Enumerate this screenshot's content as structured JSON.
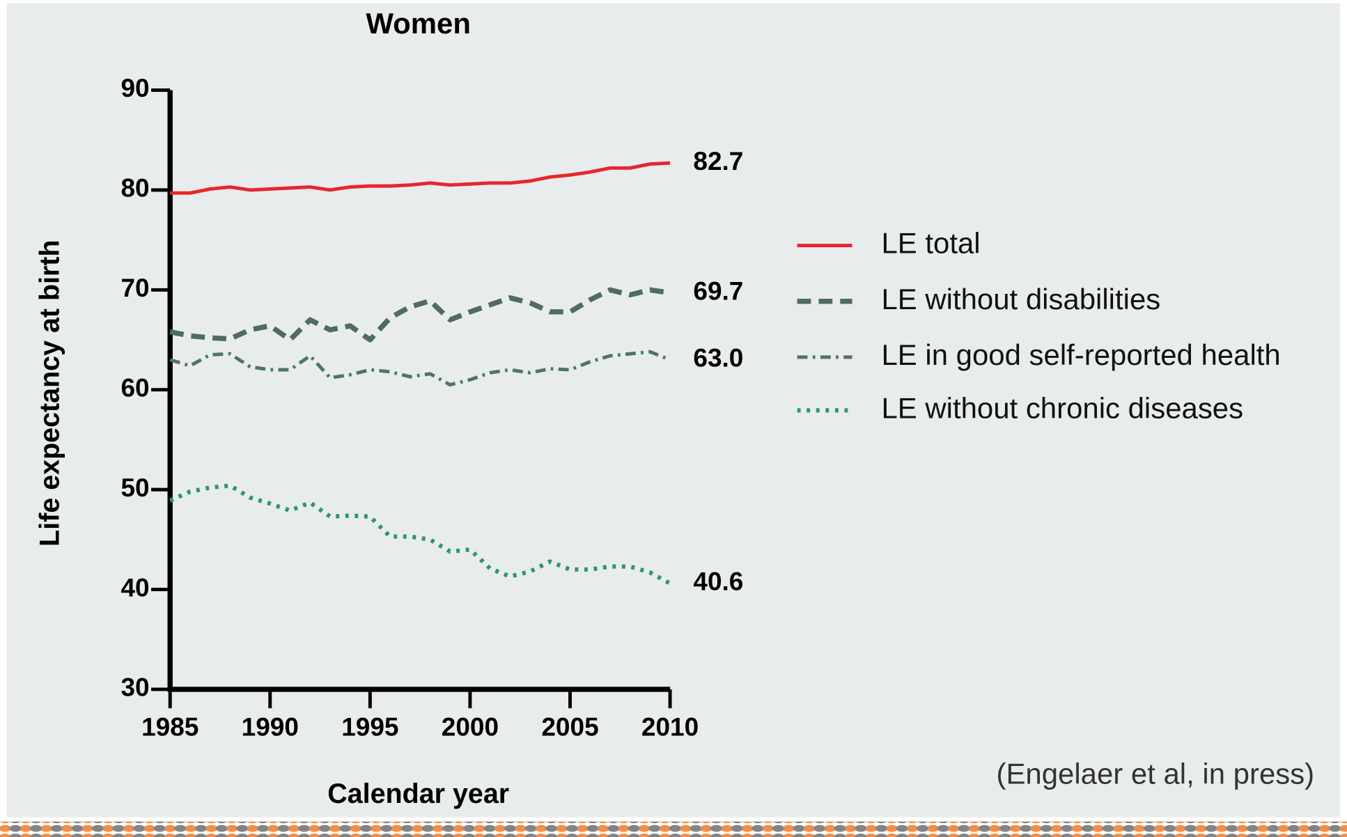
{
  "chart_data": {
    "type": "line",
    "title": "Women",
    "x_label": "Calendar year",
    "y_label": "Life expectancy at birth",
    "source": "(Engelaer et al, in press)",
    "x": [
      1985,
      1986,
      1987,
      1988,
      1989,
      1990,
      1991,
      1992,
      1993,
      1994,
      1995,
      1996,
      1997,
      1998,
      1999,
      2000,
      2001,
      2002,
      2003,
      2004,
      2005,
      2006,
      2007,
      2008,
      2009,
      2010
    ],
    "xlim": [
      1985,
      2010
    ],
    "xticks": [
      1985,
      1990,
      1995,
      2000,
      2005,
      2010
    ],
    "ylim": [
      30,
      90
    ],
    "yticks": [
      30,
      40,
      50,
      60,
      70,
      80,
      90
    ],
    "grid": false,
    "legend": "right",
    "series": [
      {
        "name": "LE total",
        "color": "#e8262e",
        "dash": "solid",
        "values": [
          79.7,
          79.7,
          80.1,
          80.3,
          80.0,
          80.1,
          80.2,
          80.3,
          80.0,
          80.3,
          80.4,
          80.4,
          80.5,
          80.7,
          80.5,
          80.6,
          80.7,
          80.7,
          80.9,
          81.3,
          81.5,
          81.8,
          82.2,
          82.2,
          82.6,
          82.7
        ],
        "value_labels": [
          null,
          null,
          null,
          null,
          null,
          null,
          null,
          null,
          null,
          null,
          null,
          null,
          null,
          null,
          null,
          null,
          null,
          null,
          null,
          null,
          null,
          null,
          null,
          null,
          null,
          "82.7"
        ]
      },
      {
        "name": "LE without disabilities",
        "color": "#4f6c5d",
        "dash": "dashed",
        "values": [
          65.8,
          65.4,
          65.2,
          65.1,
          66.0,
          66.4,
          65.0,
          67.0,
          66.0,
          66.4,
          65.0,
          67.2,
          68.3,
          68.9,
          67.0,
          67.8,
          68.5,
          69.2,
          68.7,
          67.8,
          67.8,
          69.0,
          70.0,
          69.5,
          70.0,
          69.7
        ],
        "value_labels": [
          null,
          null,
          null,
          null,
          null,
          null,
          null,
          null,
          null,
          null,
          null,
          null,
          null,
          null,
          null,
          null,
          null,
          null,
          null,
          null,
          null,
          null,
          null,
          null,
          null,
          "69.7"
        ]
      },
      {
        "name": "LE in good self-reported health",
        "color": "#4d7663",
        "dash": "dashdot",
        "values": [
          63.0,
          62.4,
          63.5,
          63.6,
          62.3,
          62.0,
          62.0,
          63.4,
          61.2,
          61.5,
          62.0,
          61.8,
          61.3,
          61.6,
          60.5,
          61.0,
          61.7,
          62.0,
          61.7,
          62.1,
          62.0,
          62.8,
          63.4,
          63.6,
          63.8,
          63.0
        ],
        "value_labels": [
          null,
          null,
          null,
          null,
          null,
          null,
          null,
          null,
          null,
          null,
          null,
          null,
          null,
          null,
          null,
          null,
          null,
          null,
          null,
          null,
          null,
          null,
          null,
          null,
          null,
          "63.0"
        ]
      },
      {
        "name": "LE without chronic diseases",
        "color": "#2a9a64",
        "dash": "dotted",
        "values": [
          48.9,
          49.8,
          50.2,
          50.4,
          49.2,
          48.6,
          47.9,
          48.7,
          47.3,
          47.4,
          47.3,
          45.3,
          45.3,
          45.0,
          43.8,
          44.0,
          42.1,
          41.3,
          41.8,
          42.8,
          42.0,
          42.0,
          42.3,
          42.3,
          41.7,
          40.6
        ],
        "value_labels": [
          null,
          null,
          null,
          null,
          null,
          null,
          null,
          null,
          null,
          null,
          null,
          null,
          null,
          null,
          null,
          null,
          null,
          null,
          null,
          null,
          null,
          null,
          null,
          null,
          null,
          "40.6"
        ]
      }
    ]
  }
}
